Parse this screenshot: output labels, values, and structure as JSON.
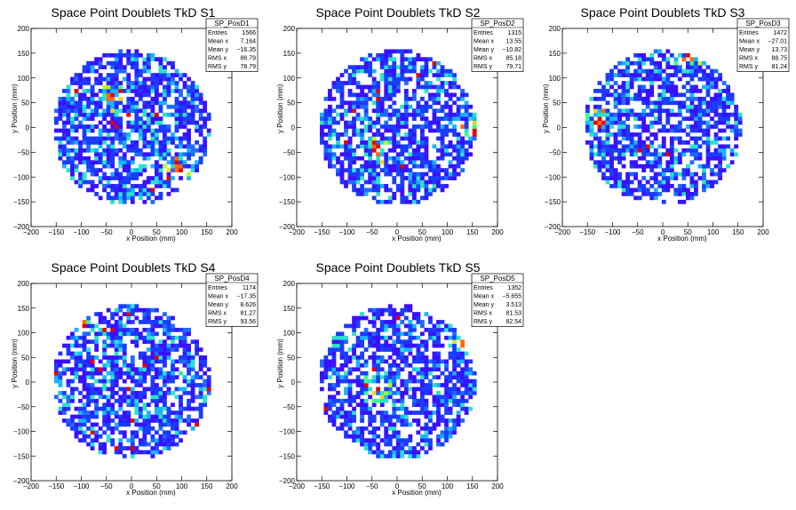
{
  "figure": {
    "background": "#ffffff"
  },
  "colors": {
    "palette": [
      "#3a10ff",
      "#1a3cff",
      "#1e6bff",
      "#18b4ff",
      "#29e3c8",
      "#3cff82",
      "#b4ff1e",
      "#ffd21e",
      "#ff6a10",
      "#e60000"
    ]
  },
  "chart_data": [
    {
      "type": "heatmap",
      "title": "Space Point Doublets TkD S1",
      "xlabel": "x Position (mm)",
      "ylabel": "y Position (mm)",
      "xlim": [
        -200,
        200
      ],
      "ylim": [
        -200,
        200
      ],
      "xticks": [
        "−200",
        "−150",
        "−100",
        "−50",
        "0",
        "50",
        "100",
        "150",
        "200"
      ],
      "yticks": [
        "−200",
        "−150",
        "−100",
        "−50",
        "0",
        "50",
        "100",
        "150",
        "200"
      ],
      "disk_radius": 162,
      "seed": 11,
      "hot": [
        [
          95,
          -80
        ],
        [
          -40,
          60
        ]
      ],
      "stats": {
        "name": "SP_PosD1",
        "rows": [
          {
            "label": "Entries",
            "value": "1566"
          },
          {
            "label": "Mean x",
            "value": "7.164"
          },
          {
            "label": "Mean y",
            "value": "−16.35"
          },
          {
            "label": "RMS x",
            "value": "86.79"
          },
          {
            "label": "RMS y",
            "value": "78.79"
          }
        ]
      }
    },
    {
      "type": "heatmap",
      "title": "Space Point Doublets TkD S2",
      "xlabel": "x Position (mm)",
      "ylabel": "y Position (mm)",
      "xlim": [
        -200,
        200
      ],
      "ylim": [
        -200,
        200
      ],
      "xticks": [
        "−200",
        "−150",
        "−100",
        "−50",
        "0",
        "50",
        "100",
        "150",
        "200"
      ],
      "yticks": [
        "−200",
        "−150",
        "−100",
        "−50",
        "0",
        "50",
        "100",
        "150",
        "200"
      ],
      "disk_radius": 162,
      "seed": 23,
      "hot": [
        [
          -40,
          -45
        ],
        [
          150,
          -10
        ]
      ],
      "stats": {
        "name": "SP_PosD2",
        "rows": [
          {
            "label": "Entries",
            "value": "1315"
          },
          {
            "label": "Mean x",
            "value": "13.55"
          },
          {
            "label": "Mean y",
            "value": "−10.82"
          },
          {
            "label": "RMS x",
            "value": "85.18"
          },
          {
            "label": "RMS y",
            "value": "79.71"
          }
        ]
      }
    },
    {
      "type": "heatmap",
      "title": "Space Point Doublets TkD S3",
      "xlabel": "x Position (mm)",
      "ylabel": "y Position (mm)",
      "xlim": [
        -200,
        200
      ],
      "ylim": [
        -200,
        200
      ],
      "xticks": [
        "−200",
        "−150",
        "−100",
        "−50",
        "0",
        "50",
        "100",
        "150",
        "200"
      ],
      "yticks": [
        "−200",
        "−150",
        "−100",
        "−50",
        "0",
        "50",
        "100",
        "150",
        "200"
      ],
      "disk_radius": 162,
      "seed": 37,
      "hot": [
        [
          -125,
          10
        ],
        [
          50,
          140
        ]
      ],
      "stats": {
        "name": "SP_PosD3",
        "rows": [
          {
            "label": "Entries",
            "value": "1472"
          },
          {
            "label": "Mean x",
            "value": "−27.01"
          },
          {
            "label": "Mean y",
            "value": "13.73"
          },
          {
            "label": "RMS x",
            "value": "88.75"
          },
          {
            "label": "RMS y",
            "value": "81.24"
          }
        ]
      }
    },
    {
      "type": "heatmap",
      "title": "Space Point Doublets TkD S4",
      "xlabel": "x Position (mm)",
      "ylabel": "y Position (mm)",
      "xlim": [
        -200,
        200
      ],
      "ylim": [
        -200,
        200
      ],
      "xticks": [
        "−200",
        "−150",
        "−100",
        "−50",
        "0",
        "50",
        "100",
        "150",
        "200"
      ],
      "yticks": [
        "−200",
        "−150",
        "−100",
        "−50",
        "0",
        "50",
        "100",
        "150",
        "200"
      ],
      "disk_radius": 162,
      "seed": 41,
      "hot": [
        [
          -100,
          115
        ]
      ],
      "stats": {
        "name": "SP_PosD4",
        "rows": [
          {
            "label": "Entries",
            "value": "1174"
          },
          {
            "label": "Mean x",
            "value": "−17.35"
          },
          {
            "label": "Mean y",
            "value": "8.626"
          },
          {
            "label": "RMS x",
            "value": "81.27"
          },
          {
            "label": "RMS y",
            "value": "93.56"
          }
        ]
      }
    },
    {
      "type": "heatmap",
      "title": "Space Point Doublets TkD S5",
      "xlabel": "x Position (mm)",
      "ylabel": "y Position (mm)",
      "xlim": [
        -200,
        200
      ],
      "ylim": [
        -200,
        200
      ],
      "xticks": [
        "−200",
        "−150",
        "−100",
        "−50",
        "0",
        "50",
        "100",
        "150",
        "200"
      ],
      "yticks": [
        "−200",
        "−150",
        "−100",
        "−50",
        "0",
        "50",
        "100",
        "150",
        "200"
      ],
      "disk_radius": 162,
      "seed": 53,
      "hot": [
        [
          -40,
          -10
        ],
        [
          130,
          80
        ]
      ],
      "stats": {
        "name": "SP_PosD5",
        "rows": [
          {
            "label": "Entries",
            "value": "1352"
          },
          {
            "label": "Mean x",
            "value": "−5.655"
          },
          {
            "label": "Mean y",
            "value": "3.513"
          },
          {
            "label": "RMS x",
            "value": "81.53"
          },
          {
            "label": "RMS y",
            "value": "82.54"
          }
        ]
      }
    }
  ]
}
